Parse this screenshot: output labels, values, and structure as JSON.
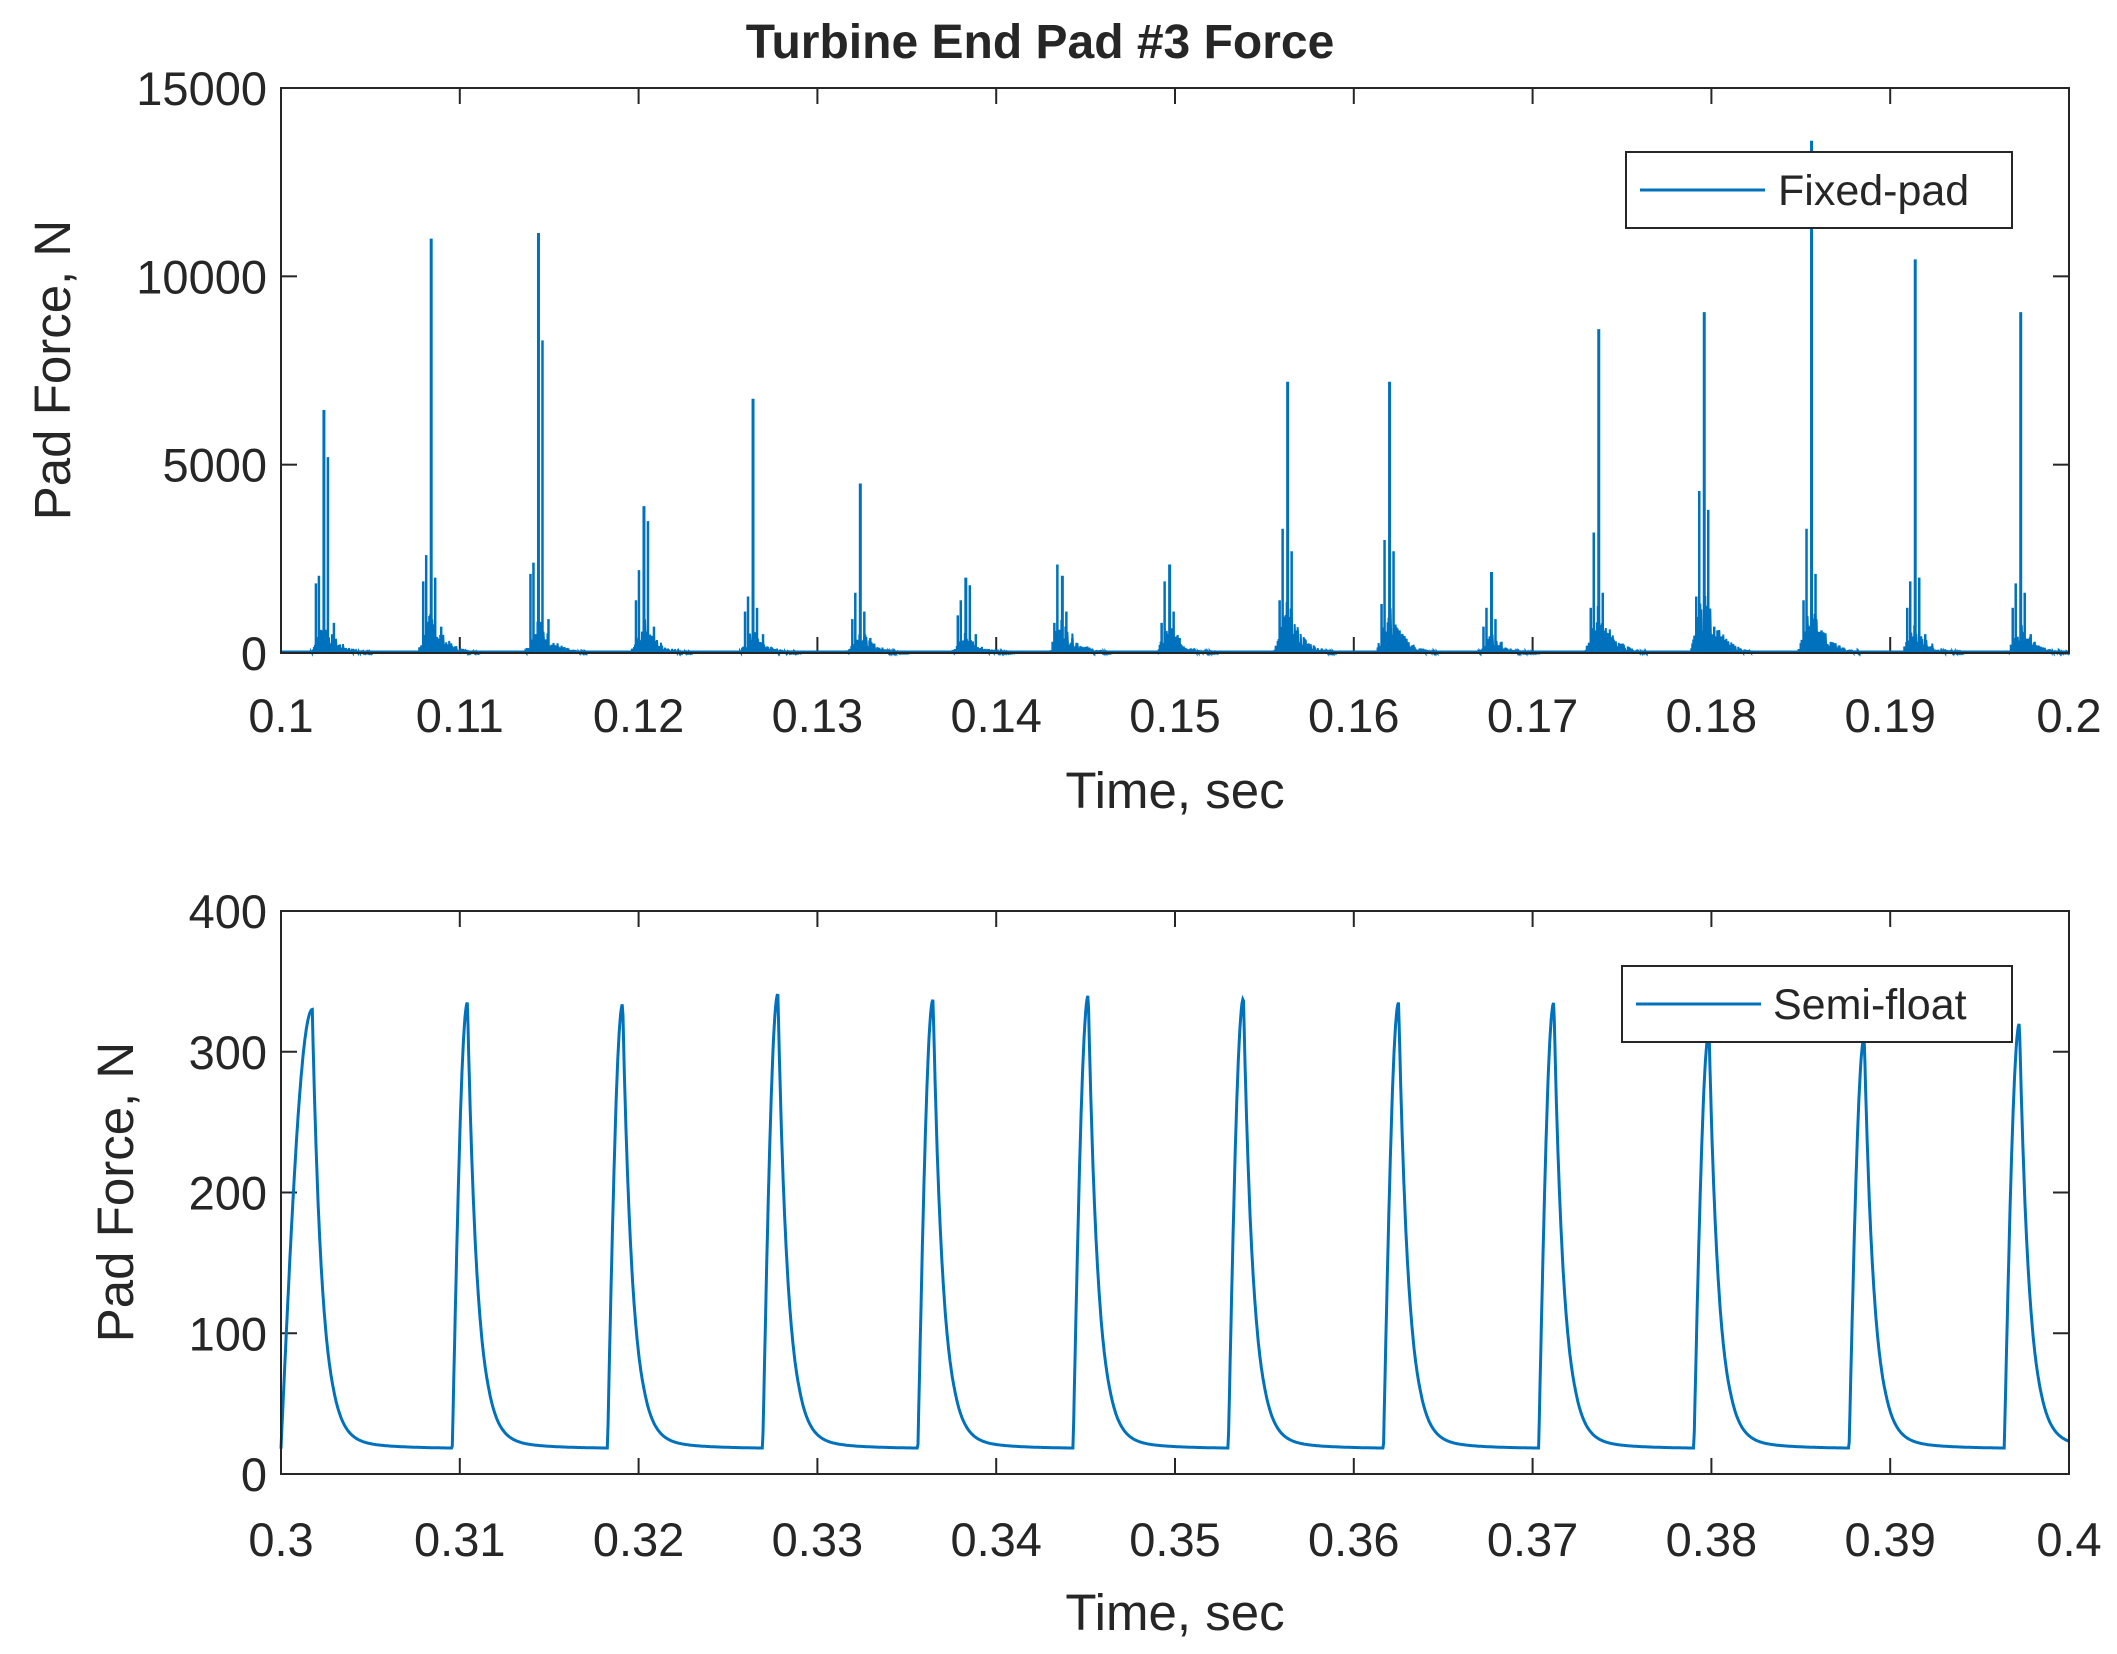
{
  "chart_data": [
    {
      "type": "line",
      "title": "Turbine End Pad #3 Force",
      "xlabel": "Time, sec",
      "ylabel": "Pad Force, N",
      "xlim": [
        0.1,
        0.2
      ],
      "ylim": [
        0,
        15000
      ],
      "xticks": [
        0.1,
        0.11,
        0.12,
        0.13,
        0.14,
        0.15,
        0.16,
        0.17,
        0.18,
        0.19,
        0.2
      ],
      "xtick_labels": [
        "0.1",
        "0.11",
        "0.12",
        "0.13",
        "0.14",
        "0.15",
        "0.16",
        "0.17",
        "0.18",
        "0.19",
        "0.2"
      ],
      "yticks": [
        0,
        5000,
        10000,
        15000
      ],
      "ytick_labels": [
        "0",
        "5000",
        "10000",
        "15000"
      ],
      "grid": false,
      "legend_position": "top-right",
      "line_color": "#0072bd",
      "series": [
        {
          "name": "Fixed-pad",
          "description": "impulsive spikes near zero baseline",
          "baseline": 0,
          "peaks": [
            {
              "x": 0.1024,
              "y": 6450,
              "side": [
                2050,
                5200,
                1850,
                800
              ]
            },
            {
              "x": 0.1084,
              "y": 11000,
              "side": [
                2600,
                2000,
                1900,
                700
              ]
            },
            {
              "x": 0.1144,
              "y": 11150,
              "side": [
                2400,
                8300,
                2100,
                900
              ]
            },
            {
              "x": 0.1203,
              "y": 3900,
              "side": [
                2200,
                3500,
                1400,
                700
              ]
            },
            {
              "x": 0.1264,
              "y": 6750,
              "side": [
                1500,
                1200,
                1100,
                500
              ]
            },
            {
              "x": 0.1324,
              "y": 4500,
              "side": [
                1600,
                1100,
                900,
                400
              ]
            },
            {
              "x": 0.1383,
              "y": 2000,
              "side": [
                1400,
                1800,
                1000,
                500
              ]
            },
            {
              "x": 0.1437,
              "y": 2050,
              "side": [
                2350,
                1100,
                800,
                400
              ]
            },
            {
              "x": 0.1497,
              "y": 2350,
              "side": [
                1900,
                1100,
                800,
                400
              ]
            },
            {
              "x": 0.1563,
              "y": 7200,
              "side": [
                3300,
                2700,
                1400,
                600
              ]
            },
            {
              "x": 0.162,
              "y": 7200,
              "side": [
                3000,
                2700,
                1300,
                600
              ]
            },
            {
              "x": 0.1677,
              "y": 2150,
              "side": [
                1200,
                900,
                700,
                300
              ]
            },
            {
              "x": 0.1737,
              "y": 8600,
              "side": [
                3200,
                1600,
                1200,
                500
              ]
            },
            {
              "x": 0.1796,
              "y": 9050,
              "side": [
                4300,
                3800,
                1500,
                700
              ]
            },
            {
              "x": 0.1856,
              "y": 13600,
              "side": [
                3300,
                2100,
                1400,
                600
              ]
            },
            {
              "x": 0.1914,
              "y": 10450,
              "side": [
                1900,
                2000,
                1200,
                500
              ]
            },
            {
              "x": 0.1973,
              "y": 9050,
              "side": [
                1850,
                1600,
                1200,
                500
              ]
            }
          ]
        }
      ]
    },
    {
      "type": "line",
      "title": "",
      "xlabel": "Time, sec",
      "ylabel": "Pad Force, N",
      "xlim": [
        0.3,
        0.4
      ],
      "ylim": [
        0,
        400
      ],
      "xticks": [
        0.3,
        0.31,
        0.32,
        0.33,
        0.34,
        0.35,
        0.36,
        0.37,
        0.38,
        0.39,
        0.4
      ],
      "xtick_labels": [
        "0.3",
        "0.31",
        "0.32",
        "0.33",
        "0.34",
        "0.35",
        "0.36",
        "0.37",
        "0.38",
        "0.39",
        "0.4"
      ],
      "yticks": [
        0,
        100,
        200,
        300,
        400
      ],
      "ytick_labels": [
        "0",
        "100",
        "200",
        "300",
        "400"
      ],
      "grid": false,
      "legend_position": "top-right",
      "line_color": "#0072bd",
      "series": [
        {
          "name": "Semi-float",
          "description": "periodic smooth pulses",
          "baseline": 18,
          "pulse_start": 0.3009,
          "period": 0.00868,
          "rise_time": 0.00085,
          "peaks": [
            330,
            335,
            334,
            341,
            337,
            340,
            338,
            335,
            335,
            314,
            310,
            320
          ]
        }
      ]
    }
  ]
}
